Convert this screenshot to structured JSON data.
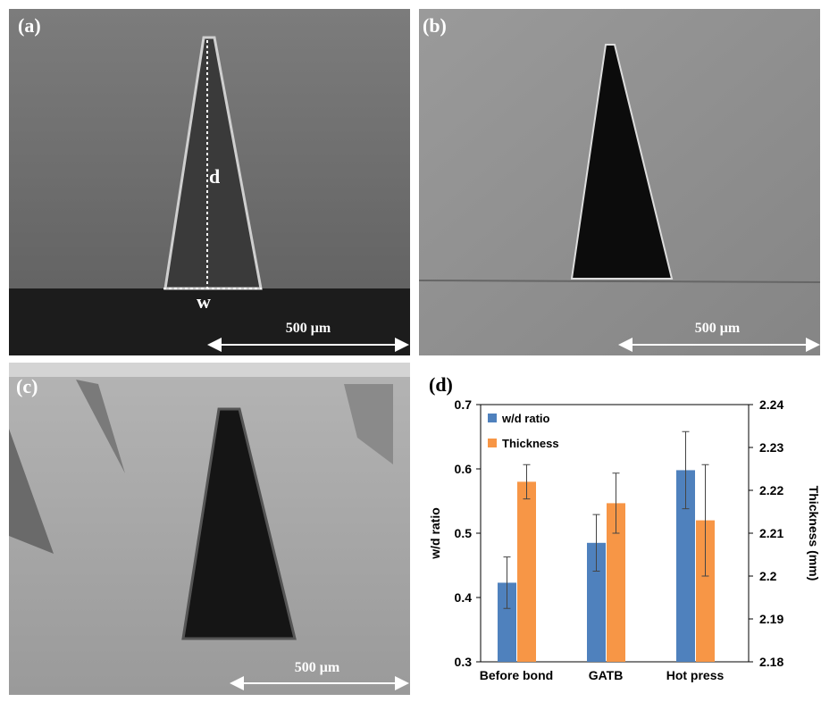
{
  "panels": [
    {
      "label": "(a)",
      "depth_label": "d",
      "width_label": "w",
      "scale_bar": "500 μm"
    },
    {
      "label": "(b)",
      "scale_bar": "500 μm"
    },
    {
      "label": "(c)",
      "scale_bar": "500 μm"
    }
  ],
  "chart_data": {
    "type": "bar",
    "panel_label": "(d)",
    "categories": [
      "Before bond",
      "GATB",
      "Hot press"
    ],
    "series": [
      {
        "name": "w/d ratio",
        "color": "#4f81bd",
        "values": [
          0.423,
          0.485,
          0.598
        ],
        "errors": [
          0.04,
          0.044,
          0.06
        ]
      },
      {
        "name": "Thickness",
        "color": "#f79646",
        "axis": "y2",
        "values": [
          2.222,
          2.217,
          2.213
        ],
        "errors": [
          0.004,
          0.007,
          0.013
        ]
      }
    ],
    "ylabel": "w/d ratio",
    "y2label": "Thickness (mm)",
    "ylim": [
      0.3,
      0.7
    ],
    "yticks": [
      0.3,
      0.4,
      0.5,
      0.6,
      0.7
    ],
    "y2lim": [
      2.18,
      2.24
    ],
    "y2ticks": [
      2.18,
      2.19,
      2.2,
      2.21,
      2.22,
      2.23,
      2.24
    ],
    "legend": "upper-left",
    "grid": false
  }
}
